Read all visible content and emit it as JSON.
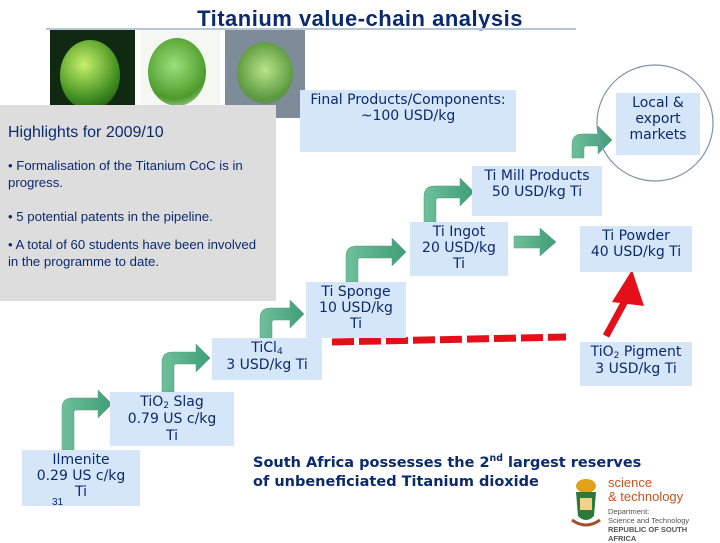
{
  "title": "Titanium value-chain analysis",
  "highlights": {
    "heading": "Highlights for 2009/10",
    "items": [
      "• Formalisation of the Titanium CoC is in progress.",
      "• 5 potential patents in the pipeline.",
      "• A total of 60 students have been involved in the programme to date."
    ]
  },
  "stages": {
    "ilmenite": {
      "name": "Ilmenite",
      "price": "0.29 US c/kg",
      "unit": "Ti"
    },
    "slag": {
      "name_prefix": "TiO",
      "name_sub": "2",
      "name_suffix": " Slag",
      "price": "0.79 US c/kg",
      "unit": "Ti"
    },
    "ticl4": {
      "name_prefix": "TiCl",
      "name_sub": "4",
      "price": "3 USD/kg Ti"
    },
    "sponge": {
      "name": "Ti Sponge",
      "price": "10 USD/kg",
      "unit": "Ti"
    },
    "ingot": {
      "name": "Ti Ingot",
      "price": "20 USD/kg",
      "unit": "Ti"
    },
    "mill": {
      "name": "Ti Mill Products",
      "price": "50 USD/kg Ti"
    },
    "final": {
      "name": "Final Products/Components:",
      "price": "~100 USD/kg"
    },
    "markets": {
      "line1": "Local &",
      "line2": "export",
      "line3": "markets"
    },
    "powder": {
      "name": "Ti Powder",
      "price": "40 USD/kg Ti"
    },
    "pigment": {
      "name_prefix": "TiO",
      "name_sub": "2",
      "name_suffix": " Pigment",
      "price": "3 USD/kg Ti"
    }
  },
  "note": {
    "pre": "South Africa possesses the 2",
    "sup": "nd",
    "post": " largest reserves of unbeneficiated Titanium dioxide"
  },
  "slide_number": "31",
  "logo": {
    "line1": "science",
    "line2": "& technology",
    "dept1": "Department:",
    "dept2": "Science and Technology",
    "dept3": "REPUBLIC OF SOUTH AFRICA"
  },
  "colors": {
    "box": "#d4e6f7",
    "text": "#0b2a6e",
    "arrow_green": "#4fae86",
    "arrow_red": "#e3101a",
    "highlights_bg": "#dddddd"
  }
}
